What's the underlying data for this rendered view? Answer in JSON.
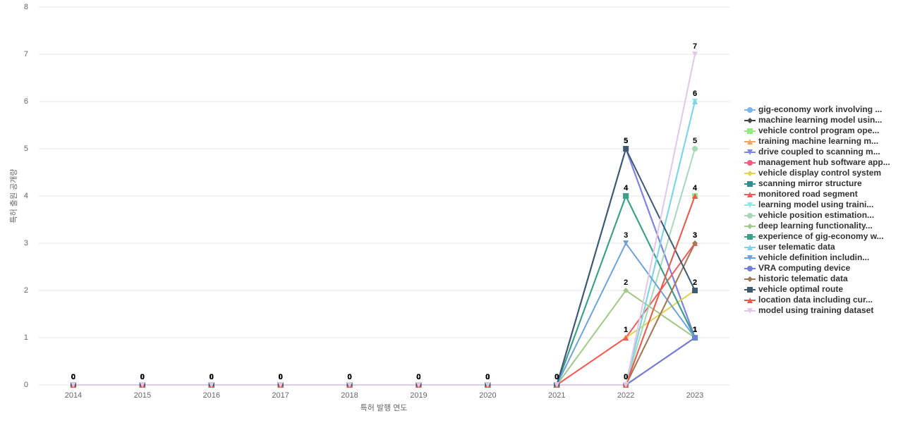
{
  "chart_data": {
    "type": "line",
    "x_label": "특허 발행 연도",
    "y_label": "특허 출원 공개량",
    "categories": [
      "2014",
      "2015",
      "2016",
      "2017",
      "2018",
      "2019",
      "2020",
      "2021",
      "2022",
      "2023"
    ],
    "ylim": [
      0,
      8
    ],
    "yticks": [
      0,
      1,
      2,
      3,
      4,
      5,
      6,
      7,
      8
    ],
    "grid": true,
    "legend": "right",
    "series": [
      {
        "name": "gig-economy work involving ...",
        "color": "#7cb5ec",
        "marker": "circle",
        "values": [
          0,
          0,
          0,
          0,
          0,
          0,
          0,
          0,
          0,
          1
        ]
      },
      {
        "name": "machine learning model usin...",
        "color": "#434348",
        "marker": "diamond",
        "values": [
          0,
          0,
          0,
          0,
          0,
          0,
          0,
          0,
          5,
          1
        ]
      },
      {
        "name": "vehicle control program ope...",
        "color": "#90ed7d",
        "marker": "square",
        "values": [
          0,
          0,
          0,
          0,
          0,
          0,
          0,
          0,
          0,
          4
        ]
      },
      {
        "name": "training machine learning m...",
        "color": "#f7a35c",
        "marker": "triangle",
        "values": [
          0,
          0,
          0,
          0,
          0,
          0,
          0,
          0,
          0,
          3
        ]
      },
      {
        "name": "drive coupled to scanning m...",
        "color": "#8085e9",
        "marker": "triangle-down",
        "values": [
          0,
          0,
          0,
          0,
          0,
          0,
          0,
          0,
          5,
          1
        ]
      },
      {
        "name": "management hub software app...",
        "color": "#f15c80",
        "marker": "circle",
        "values": [
          0,
          0,
          0,
          0,
          0,
          0,
          0,
          0,
          0,
          1
        ]
      },
      {
        "name": "vehicle display control system",
        "color": "#e4d354",
        "marker": "diamond",
        "values": [
          0,
          0,
          0,
          0,
          0,
          0,
          0,
          0,
          1,
          2
        ]
      },
      {
        "name": "scanning mirror structure",
        "color": "#2b908f",
        "marker": "square",
        "values": [
          0,
          0,
          0,
          0,
          0,
          0,
          0,
          0,
          4,
          1
        ]
      },
      {
        "name": "monitored road segment",
        "color": "#f45b5b",
        "marker": "triangle",
        "values": [
          0,
          0,
          0,
          0,
          0,
          0,
          0,
          0,
          1,
          3
        ]
      },
      {
        "name": "learning model using traini...",
        "color": "#91e8e1",
        "marker": "triangle-down",
        "values": [
          0,
          0,
          0,
          0,
          0,
          0,
          0,
          0,
          0,
          6
        ]
      },
      {
        "name": "vehicle position estimation...",
        "color": "#a8d8b9",
        "marker": "circle",
        "values": [
          0,
          0,
          0,
          0,
          0,
          0,
          0,
          0,
          0,
          5
        ]
      },
      {
        "name": "deep learning functionality...",
        "color": "#a3c98a",
        "marker": "diamond",
        "values": [
          0,
          0,
          0,
          0,
          0,
          0,
          0,
          0,
          2,
          1
        ]
      },
      {
        "name": "experience of gig-economy w...",
        "color": "#3fa08a",
        "marker": "square",
        "values": [
          0,
          0,
          0,
          0,
          0,
          0,
          0,
          0,
          4,
          1
        ]
      },
      {
        "name": "user telematic data",
        "color": "#7dd3e8",
        "marker": "triangle",
        "values": [
          0,
          0,
          0,
          0,
          0,
          0,
          0,
          0,
          0,
          6
        ]
      },
      {
        "name": "vehicle definition includin...",
        "color": "#6fa3d8",
        "marker": "triangle-down",
        "values": [
          0,
          0,
          0,
          0,
          0,
          0,
          0,
          0,
          3,
          1
        ]
      },
      {
        "name": "VRA computing device",
        "color": "#7080d8",
        "marker": "circle",
        "values": [
          0,
          0,
          0,
          0,
          0,
          0,
          0,
          0,
          0,
          1
        ]
      },
      {
        "name": "historic telematic data",
        "color": "#a0785a",
        "marker": "diamond",
        "values": [
          0,
          0,
          0,
          0,
          0,
          0,
          0,
          0,
          0,
          3
        ]
      },
      {
        "name": "vehicle optimal route",
        "color": "#3d5a70",
        "marker": "square",
        "values": [
          0,
          0,
          0,
          0,
          0,
          0,
          0,
          0,
          5,
          2
        ]
      },
      {
        "name": "location data including cur...",
        "color": "#e8594f",
        "marker": "triangle",
        "values": [
          0,
          0,
          0,
          0,
          0,
          0,
          0,
          0,
          0,
          4
        ]
      },
      {
        "name": "model using training dataset",
        "color": "#e0c8e8",
        "marker": "triangle-down",
        "values": [
          0,
          0,
          0,
          0,
          0,
          0,
          0,
          0,
          0,
          7
        ]
      }
    ]
  }
}
